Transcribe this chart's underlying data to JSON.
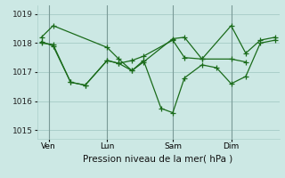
{
  "background_color": "#cce8e4",
  "line_color": "#1a6b1a",
  "grid_color": "#aacfca",
  "title": "Pression niveau de la mer( hPa )",
  "ylim": [
    1014.7,
    1019.3
  ],
  "yticks": [
    1015,
    1016,
    1017,
    1018,
    1019
  ],
  "xlim": [
    -0.3,
    16.3
  ],
  "xtick_labels": [
    "Ven",
    "Lun",
    "Sam",
    "Dim"
  ],
  "xtick_positions": [
    0.5,
    4.5,
    9.0,
    13.0
  ],
  "vlines": [
    0.5,
    4.5,
    9.0,
    13.0
  ],
  "series1_x": [
    0.0,
    0.8,
    4.5,
    5.3,
    6.2,
    7.0,
    9.0,
    9.8,
    11.0,
    13.0,
    14.0,
    15.0,
    16.0
  ],
  "series1_y": [
    1018.2,
    1018.6,
    1017.85,
    1017.45,
    1017.05,
    1017.35,
    1018.15,
    1018.2,
    1017.45,
    1018.6,
    1017.65,
    1018.1,
    1018.2
  ],
  "series2_x": [
    0.0,
    0.8,
    2.0,
    3.0,
    4.5,
    5.3,
    6.2,
    7.0,
    8.2,
    9.0,
    9.8,
    11.0,
    12.0,
    13.0,
    14.0,
    15.0,
    16.0
  ],
  "series2_y": [
    1018.0,
    1017.95,
    1016.65,
    1016.55,
    1017.4,
    1017.3,
    1017.05,
    1017.4,
    1015.75,
    1015.6,
    1016.8,
    1017.25,
    1017.15,
    1016.6,
    1016.85,
    1018.0,
    1018.1
  ],
  "series3_x": [
    0.0,
    0.8,
    2.0,
    3.0,
    4.5,
    5.3,
    6.2,
    7.0,
    9.0,
    9.8,
    11.0,
    13.0,
    14.0
  ],
  "series3_y": [
    1018.05,
    1017.9,
    1016.65,
    1016.55,
    1017.4,
    1017.3,
    1017.4,
    1017.55,
    1018.1,
    1017.5,
    1017.45,
    1017.45,
    1017.35
  ],
  "title_fontsize": 7.5,
  "tick_fontsize": 6.5,
  "marker_size": 4,
  "linewidth": 0.9
}
